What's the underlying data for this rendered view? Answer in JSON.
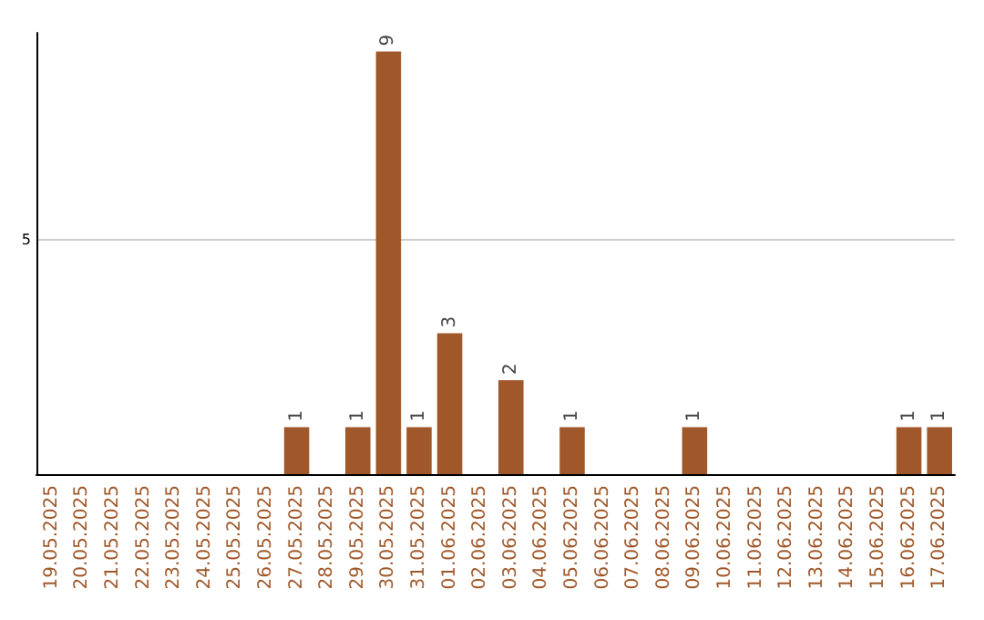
{
  "chart_data": {
    "type": "bar",
    "categories": [
      "19.05.2025",
      "20.05.2025",
      "21.05.2025",
      "22.05.2025",
      "23.05.2025",
      "24.05.2025",
      "25.05.2025",
      "26.05.2025",
      "27.05.2025",
      "28.05.2025",
      "29.05.2025",
      "30.05.2025",
      "31.05.2025",
      "01.06.2025",
      "02.06.2025",
      "03.06.2025",
      "04.06.2025",
      "05.06.2025",
      "06.06.2025",
      "07.06.2025",
      "08.06.2025",
      "09.06.2025",
      "10.06.2025",
      "11.06.2025",
      "12.06.2025",
      "13.06.2025",
      "14.06.2025",
      "15.06.2025",
      "16.06.2025",
      "17.06.2025"
    ],
    "values": [
      0,
      0,
      0,
      0,
      0,
      0,
      0,
      0,
      1,
      0,
      1,
      9,
      1,
      3,
      0,
      2,
      0,
      1,
      0,
      0,
      0,
      1,
      0,
      0,
      0,
      0,
      0,
      0,
      1,
      1
    ],
    "value_labels": [
      null,
      null,
      null,
      null,
      null,
      null,
      null,
      null,
      "1",
      null,
      "1",
      "9",
      "1",
      "3",
      null,
      "2",
      null,
      "1",
      null,
      null,
      null,
      "1",
      null,
      null,
      null,
      null,
      null,
      null,
      "1",
      "1"
    ],
    "color": "#a0582a",
    "ylim": [
      0,
      9.4
    ],
    "yticks": [
      5
    ],
    "grid": "y"
  }
}
